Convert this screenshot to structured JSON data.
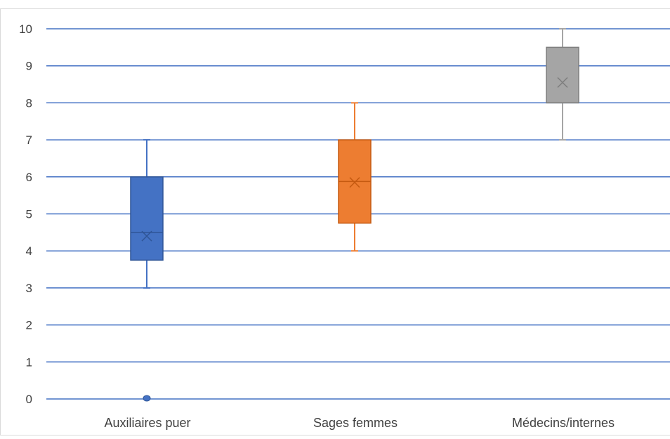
{
  "chart_data": {
    "type": "box",
    "categories": [
      "Auxiliaires puer",
      "Sages femmes",
      "Médecins/internes"
    ],
    "ylim": [
      0,
      10
    ],
    "y_ticks": [
      "0",
      "1",
      "2",
      "3",
      "4",
      "5",
      "6",
      "7",
      "8",
      "9",
      "10"
    ],
    "grid": true,
    "legend": "none",
    "colors": {
      "grid": "#4472c4",
      "border": "#d9d9d9",
      "series": [
        "#4472c4",
        "#ed7d31",
        "#a5a5a5"
      ],
      "series_stroke": [
        "#2f5597",
        "#c55a11",
        "#7f7f7f"
      ]
    },
    "series": [
      {
        "category": "Auxiliaires puer",
        "min": 3,
        "q1": 3.75,
        "median": 4.5,
        "q3": 6,
        "max": 7,
        "mean": 4.4,
        "outliers": [
          0
        ]
      },
      {
        "category": "Sages femmes",
        "min": 4,
        "q1": 4.75,
        "median": 5.875,
        "q3": 7,
        "max": 8,
        "mean": 5.85,
        "outliers": []
      },
      {
        "category": "Médecins/internes",
        "min": 7,
        "q1": 8,
        "median": 8,
        "q3": 9.5,
        "max": 10,
        "mean": 8.55,
        "outliers": []
      }
    ]
  }
}
